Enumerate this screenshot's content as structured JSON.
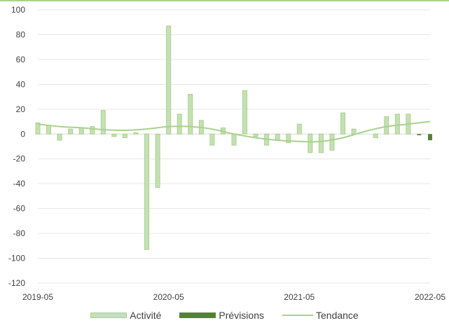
{
  "chart_data": {
    "type": "bar",
    "ylim": [
      -120,
      100
    ],
    "yticks": [
      -120,
      -100,
      -80,
      -60,
      -40,
      -20,
      0,
      20,
      40,
      60,
      80,
      100
    ],
    "x_tick_labels": [
      "2019-05",
      "2020-05",
      "2021-05",
      "2022-05"
    ],
    "x_ticks_index": [
      0,
      12,
      24,
      36
    ],
    "grid": true,
    "legend_position": "bottom",
    "series": [
      {
        "name": "Activité",
        "type": "bar",
        "color": "#c5e0b4",
        "edge_color": "#a9d18e",
        "points": [
          {
            "i": 0,
            "v": 9
          },
          {
            "i": 1,
            "v": 7
          },
          {
            "i": 2,
            "v": -5
          },
          {
            "i": 3,
            "v": 4
          },
          {
            "i": 4,
            "v": 5
          },
          {
            "i": 5,
            "v": 6
          },
          {
            "i": 6,
            "v": 19
          },
          {
            "i": 7,
            "v": -2
          },
          {
            "i": 8,
            "v": -3
          },
          {
            "i": 9,
            "v": 1
          },
          {
            "i": 10,
            "v": -93
          },
          {
            "i": 11,
            "v": -43
          },
          {
            "i": 12,
            "v": 87
          },
          {
            "i": 13,
            "v": 16
          },
          {
            "i": 14,
            "v": 32
          },
          {
            "i": 15,
            "v": 11
          },
          {
            "i": 16,
            "v": -9
          },
          {
            "i": 17,
            "v": 5
          },
          {
            "i": 18,
            "v": -9
          },
          {
            "i": 19,
            "v": 35
          },
          {
            "i": 20,
            "v": -2
          },
          {
            "i": 21,
            "v": -9
          },
          {
            "i": 22,
            "v": -5
          },
          {
            "i": 23,
            "v": -7
          },
          {
            "i": 24,
            "v": 8
          },
          {
            "i": 25,
            "v": -15
          },
          {
            "i": 26,
            "v": -15
          },
          {
            "i": 27,
            "v": -13
          },
          {
            "i": 28,
            "v": 17
          },
          {
            "i": 29,
            "v": 4
          },
          {
            "i": 31,
            "v": -3
          },
          {
            "i": 32,
            "v": 14
          },
          {
            "i": 33,
            "v": 16
          },
          {
            "i": 34,
            "v": 16
          }
        ]
      },
      {
        "name": "Prévisions",
        "type": "bar",
        "color": "#548235",
        "points": [
          {
            "i": 35,
            "v": -1
          },
          {
            "i": 36,
            "v": -5
          }
        ]
      },
      {
        "name": "Tendance",
        "type": "line",
        "color": "#a9d18e",
        "points": [
          {
            "i": 0,
            "v": 8
          },
          {
            "i": 2,
            "v": 6
          },
          {
            "i": 4,
            "v": 5
          },
          {
            "i": 6,
            "v": 3.5
          },
          {
            "i": 8,
            "v": 3
          },
          {
            "i": 10,
            "v": 4
          },
          {
            "i": 12,
            "v": 6
          },
          {
            "i": 14,
            "v": 6
          },
          {
            "i": 16,
            "v": 4
          },
          {
            "i": 18,
            "v": 0
          },
          {
            "i": 20,
            "v": -3
          },
          {
            "i": 22,
            "v": -5
          },
          {
            "i": 24,
            "v": -6
          },
          {
            "i": 26,
            "v": -6
          },
          {
            "i": 28,
            "v": -3
          },
          {
            "i": 30,
            "v": 2
          },
          {
            "i": 32,
            "v": 6
          },
          {
            "i": 34,
            "v": 8
          },
          {
            "i": 36,
            "v": 10
          }
        ]
      }
    ]
  }
}
